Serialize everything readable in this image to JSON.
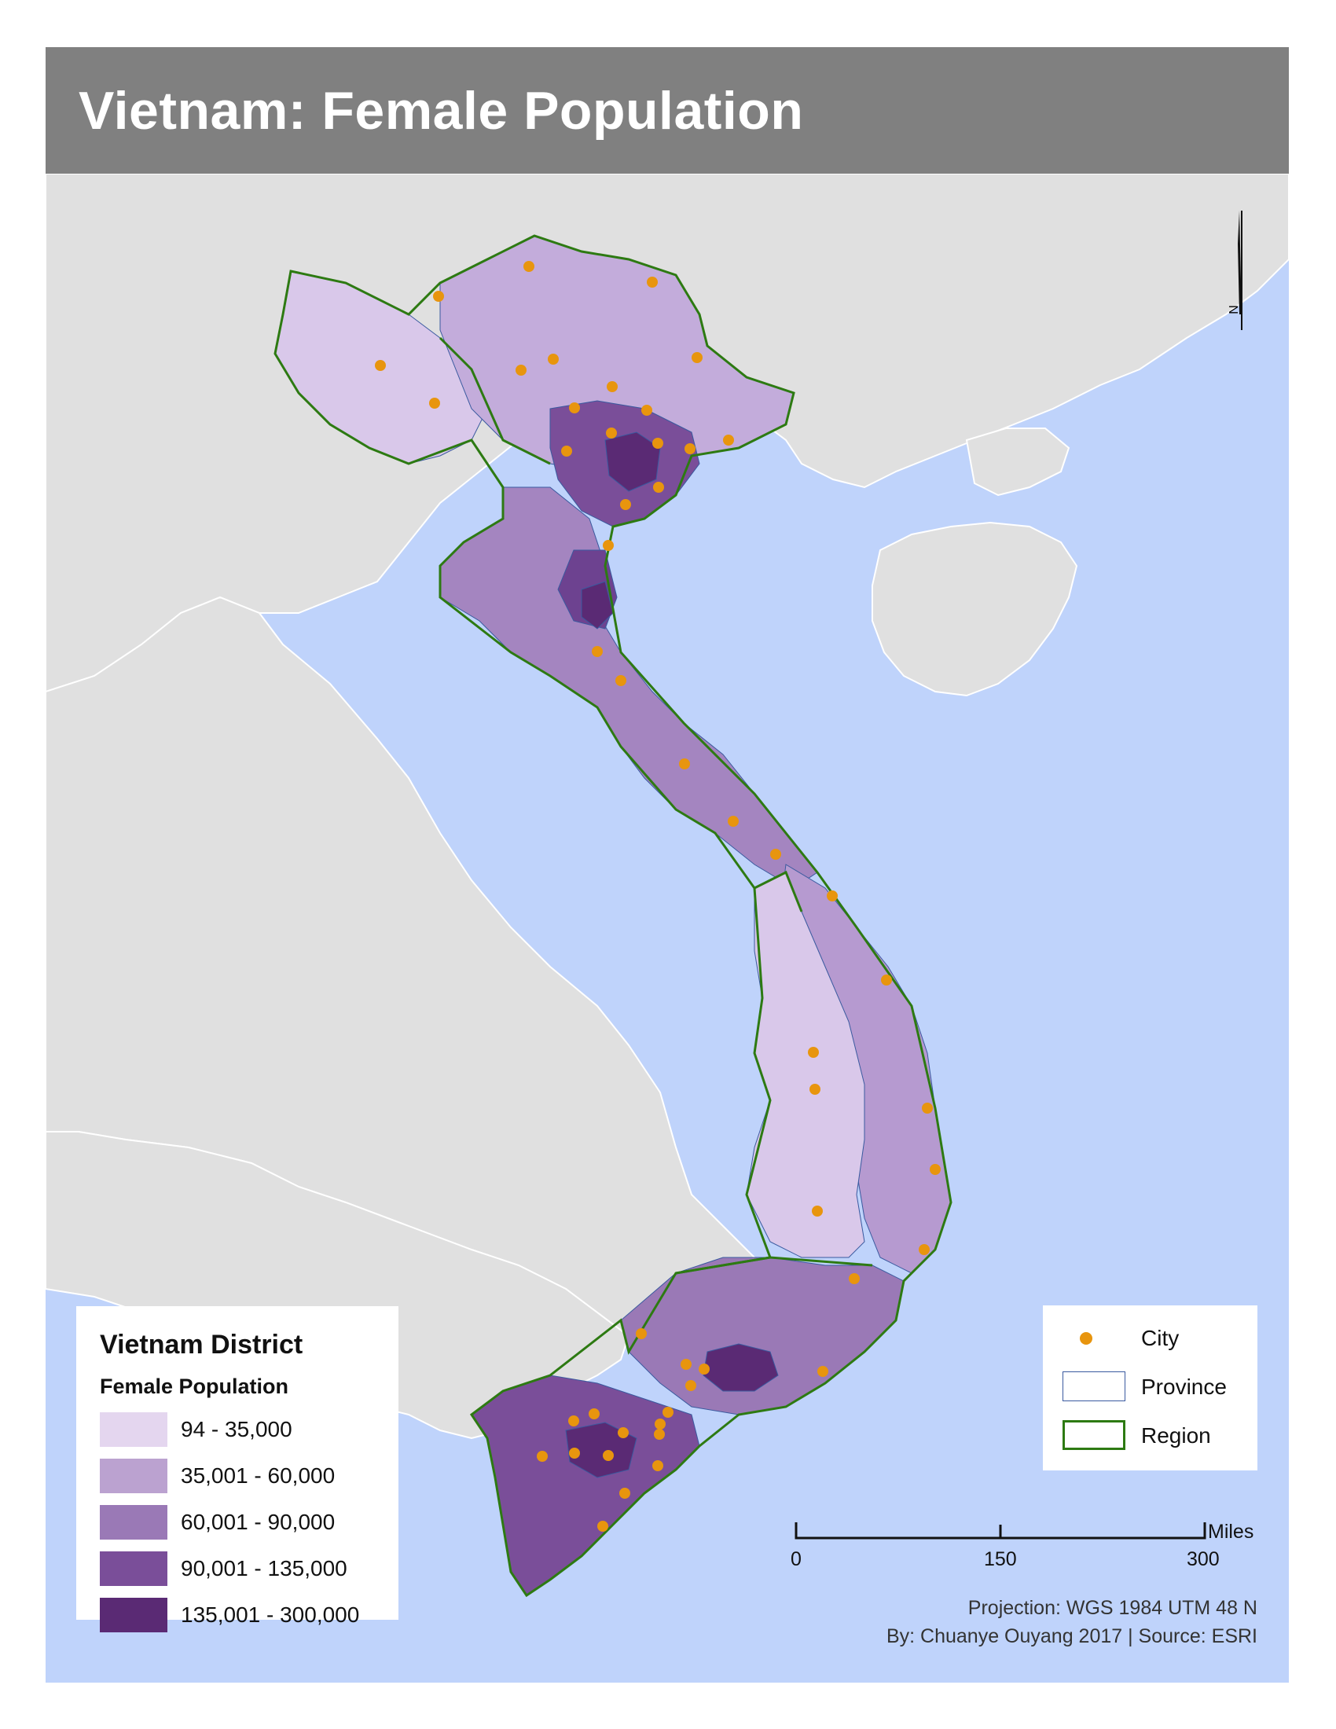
{
  "title": "Vietnam: Female Population",
  "colors": {
    "sea": "#bfd3fb",
    "land": "#e0e0e0",
    "title_bar": "#808080",
    "region_border": "#2d7a12",
    "province_border": "#3a5a9f",
    "city": "#e8950e"
  },
  "legend": {
    "title": "Vietnam District",
    "subtitle": "Female Population",
    "classes": [
      {
        "label": "94 - 35,000",
        "color": "#e4d6ef"
      },
      {
        "label": "35,001 - 60,000",
        "color": "#bba2d0"
      },
      {
        "label": "60,001 - 90,000",
        "color": "#9a79b6"
      },
      {
        "label": "90,001 - 135,000",
        "color": "#7a4e99"
      },
      {
        "label": "135,001 - 300,000",
        "color": "#5a2a74"
      }
    ]
  },
  "symbols": {
    "city": "City",
    "province": "Province",
    "region": "Region"
  },
  "scale_bar": {
    "unit": "Miles",
    "ticks": [
      "0",
      "150",
      "300"
    ]
  },
  "north_arrow": {
    "label": "N"
  },
  "credits": {
    "projection": "Projection: WGS 1984 UTM 48 N",
    "author": "By: Chuanye Ouyang 2017 | Source: ESRI"
  }
}
